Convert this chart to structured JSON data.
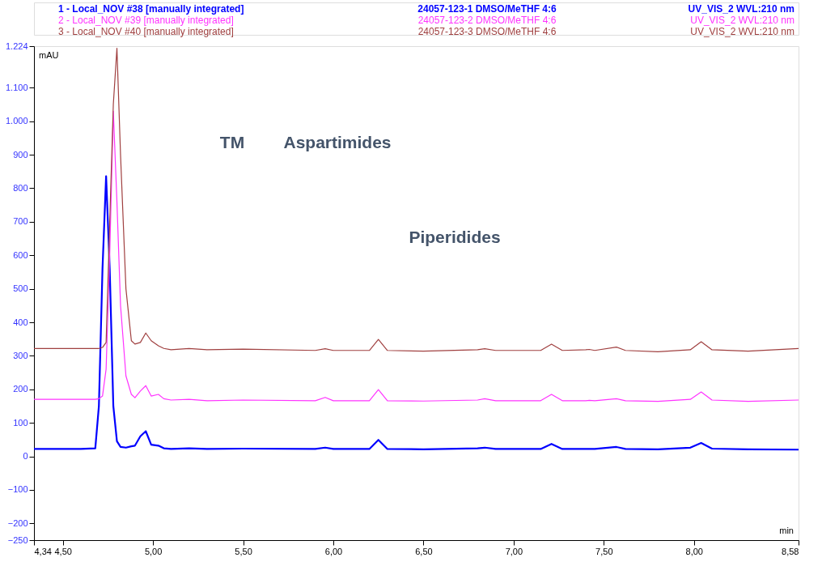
{
  "chart_data": {
    "type": "line",
    "x": [
      4.34,
      4.5,
      4.6,
      4.68,
      4.7,
      4.72,
      4.74,
      4.76,
      4.78,
      4.8,
      4.82,
      4.85,
      4.88,
      4.9,
      4.93,
      4.96,
      4.99,
      5.03,
      5.06,
      5.1,
      5.2,
      5.3,
      5.5,
      5.9,
      5.955,
      6.0,
      6.2,
      6.25,
      6.3,
      6.5,
      6.8,
      6.84,
      6.9,
      7.15,
      7.21,
      7.27,
      7.4,
      7.42,
      7.45,
      7.57,
      7.62,
      7.8,
      7.98,
      8.04,
      8.1,
      8.3,
      8.58
    ],
    "series": [
      {
        "name": "1 - Local_NOV #38 [manually integrated]",
        "color": "#0000ff",
        "values": [
          22,
          22,
          22,
          24,
          150,
          560,
          836,
          560,
          150,
          45,
          28,
          26,
          30,
          32,
          60,
          75,
          35,
          32,
          24,
          22,
          24,
          22,
          23,
          22,
          26,
          22,
          22,
          49,
          22,
          21,
          24,
          26,
          22,
          22,
          37,
          22,
          22,
          22,
          22,
          28,
          22,
          21,
          26,
          40,
          23,
          21,
          20
        ]
      },
      {
        "name": "2 - Local_NOV #39 [manually integrated]",
        "color": "#ff33ff",
        "values": [
          170,
          170,
          170,
          170,
          172,
          180,
          260,
          600,
          1030,
          760,
          450,
          240,
          185,
          175,
          195,
          211,
          180,
          185,
          172,
          168,
          170,
          166,
          168,
          166,
          176,
          166,
          166,
          199,
          166,
          165,
          168,
          172,
          166,
          166,
          185,
          166,
          166,
          167,
          166,
          172,
          166,
          164,
          170,
          192,
          168,
          164,
          168
        ]
      },
      {
        "name": "3 - Local_NOV #40 [manually integrated]",
        "color": "#a04040",
        "values": [
          322,
          322,
          322,
          322,
          322,
          325,
          340,
          700,
          1050,
          1218,
          900,
          500,
          345,
          335,
          340,
          368,
          345,
          330,
          322,
          318,
          322,
          318,
          320,
          316,
          321,
          316,
          316,
          349,
          316,
          314,
          318,
          321,
          316,
          316,
          335,
          316,
          318,
          319,
          316,
          326,
          316,
          312,
          318,
          342,
          318,
          314,
          322
        ]
      }
    ],
    "xlim": [
      4.34,
      8.58
    ],
    "xticks": [
      {
        "value": 4.34,
        "label": "4,34"
      },
      {
        "value": 4.5,
        "label": "4,50"
      },
      {
        "value": 5.0,
        "label": "5,00"
      },
      {
        "value": 5.5,
        "label": "5,50"
      },
      {
        "value": 6.0,
        "label": "6,00"
      },
      {
        "value": 6.5,
        "label": "6,50"
      },
      {
        "value": 7.0,
        "label": "7,00"
      },
      {
        "value": 7.5,
        "label": "7,50"
      },
      {
        "value": 8.0,
        "label": "8,00"
      },
      {
        "value": 8.58,
        "label": "8,58"
      }
    ],
    "ylim": [
      -250,
      1224
    ],
    "yticks": [
      -250,
      -200,
      -100,
      0,
      100,
      200,
      300,
      400,
      500,
      600,
      700,
      800,
      900,
      {
        "value": 1000,
        "label": "1.000"
      },
      {
        "value": 1100,
        "label": "1.100"
      },
      {
        "value": 1224,
        "label": "1.224"
      }
    ],
    "xlabel": "min",
    "ylabel": "mAU",
    "legend": "top",
    "grid": false,
    "marker": "none",
    "line_style": "solid",
    "annotations": [
      "TM",
      "Aspartimides",
      "Piperidides",
      "24057-123-1 DMSO/MeTHF 4:6",
      "UV_VIS_2 WVL:210 nm",
      "24057-123-2 DMSO/MeTHF 4:6",
      "UV_VIS_2 WVL:210 nm",
      "24057-123-3 DMSO/MeTHF 4:6",
      "UV_VIS_2 WVL:210 nm"
    ]
  }
}
